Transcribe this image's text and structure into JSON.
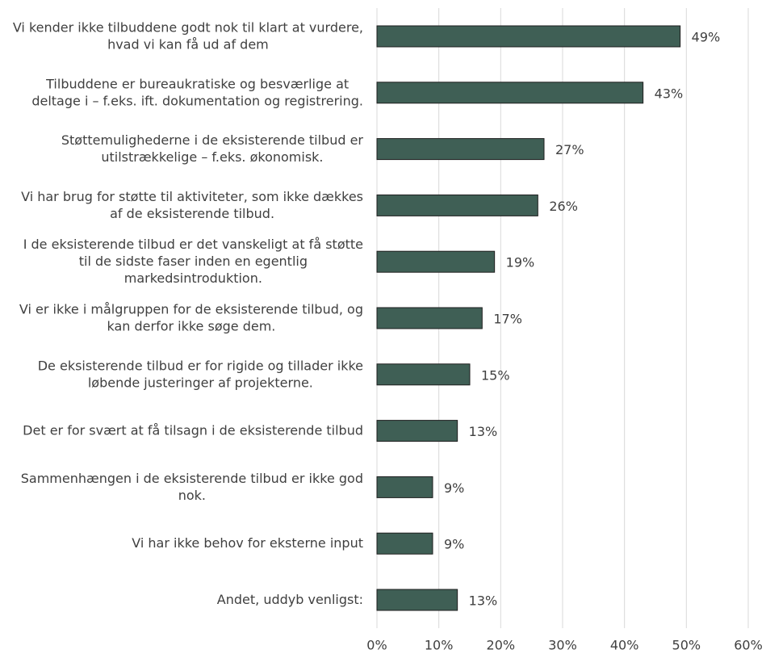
{
  "chart_data": {
    "type": "bar",
    "orientation": "horizontal",
    "categories": [
      "Vi kender ikke tilbuddene godt nok til klart at vurdere, hvad vi kan få ud af dem",
      "Tilbuddene er bureaukratiske og besværlige at deltage i – f.eks. ift. dokumentation og registrering.",
      "Støttemulighederne i de eksisterende tilbud er utilstrækkelige – f.eks. økonomisk.",
      "Vi har brug for støtte til aktiviteter, som ikke dækkes af de eksisterende tilbud.",
      "I de eksisterende tilbud er det vanskeligt at få støtte til de sidste faser inden en egentlig markedsintroduktion.",
      "Vi er ikke i målgruppen for de eksisterende tilbud, og kan derfor ikke søge dem.",
      "De eksisterende tilbud er for rigide og tillader ikke løbende justeringer af projekterne.",
      "Det er for svært at få tilsagn i de eksisterende tilbud",
      "Sammenhængen i de eksisterende tilbud er ikke god nok.",
      "Vi har ikke behov for eksterne input",
      "Andet, uddyb venligst:"
    ],
    "values": [
      49,
      43,
      27,
      26,
      19,
      17,
      15,
      13,
      9,
      9,
      13
    ],
    "value_labels": [
      "49%",
      "43%",
      "27%",
      "26%",
      "19%",
      "17%",
      "15%",
      "13%",
      "9%",
      "9%",
      "13%"
    ],
    "color": "#3f5f55",
    "xlim": [
      0,
      60
    ],
    "xticks": [
      {
        "value": 0,
        "label": "0%"
      },
      {
        "value": 10,
        "label": "10%"
      },
      {
        "value": 20,
        "label": "20%"
      },
      {
        "value": 30,
        "label": "30%"
      },
      {
        "value": 40,
        "label": "40%"
      },
      {
        "value": 50,
        "label": "50%"
      },
      {
        "value": 60,
        "label": "60%"
      }
    ],
    "grid": true
  }
}
